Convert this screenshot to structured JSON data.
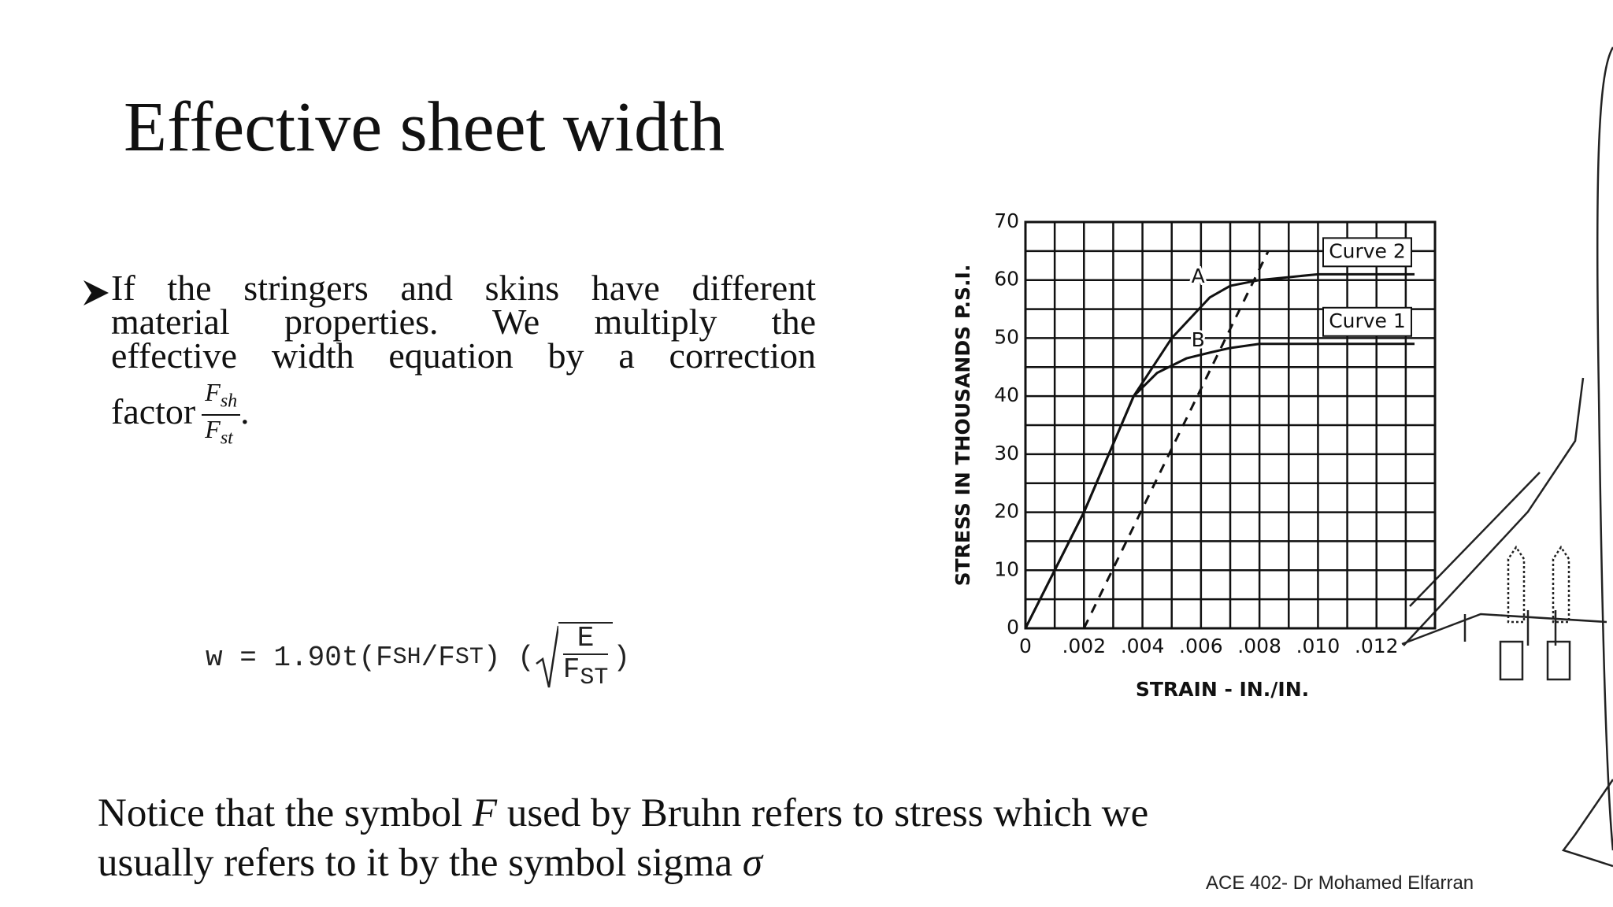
{
  "slide": {
    "title": "Effective sheet width",
    "bullet": {
      "lines": [
        "If the stringers and skins have different",
        "material properties. We multiply the",
        "effective width equation by a correction",
        "factor"
      ],
      "fraction": {
        "numerator": "F",
        "numerator_sub": "sh",
        "denominator": "F",
        "denominator_sub": "st"
      },
      "end": "."
    },
    "equation": {
      "prefix": "w = 1.90t(F",
      "sub1": "SH",
      "mid": "/F",
      "sub2": "ST",
      "open": ") (",
      "numerator": "E",
      "denominator": "F",
      "denominator_sub": "ST",
      "close": ")"
    },
    "notice": {
      "line1": [
        "Notice that the symbol ",
        "F",
        " used by Bruhn refers to stress which we"
      ],
      "line2": [
        "usually refers to it by the symbol sigma ",
        "σ"
      ]
    },
    "footer": "ACE 402- Dr Mohamed Elfarran"
  },
  "chart_data": {
    "type": "line",
    "x_label": "STRAIN - IN./IN.",
    "y_label": "STRESS IN THOUSANDS P.S.I.",
    "xlim": [
      0,
      0.014
    ],
    "ylim": [
      0,
      70
    ],
    "xticks": [
      0,
      {
        "value": 0.002,
        "label": ".002"
      },
      {
        "value": 0.004,
        "label": ".004"
      },
      {
        "value": 0.006,
        "label": ".006"
      },
      {
        "value": 0.008,
        "label": ".008"
      },
      {
        "value": 0.01,
        "label": ".010"
      },
      {
        "value": 0.012,
        "label": ".012"
      }
    ],
    "yticks": [
      0,
      10,
      20,
      30,
      40,
      50,
      60,
      70
    ],
    "x_minor_ticks": [
      0.001,
      0.003,
      0.005,
      0.007,
      0.009,
      0.011,
      0.013
    ],
    "y_minor_ticks": [
      5,
      15,
      25,
      35,
      45,
      55,
      65
    ],
    "grid": true,
    "series": [
      {
        "name": "Curve 2",
        "color": "#111111",
        "x": [
          0,
          0.002,
          0.0037,
          0.005,
          0.0063,
          0.007,
          0.008,
          0.01,
          0.0133
        ],
        "values": [
          0,
          20,
          40,
          50,
          57,
          59,
          60,
          61,
          61
        ]
      },
      {
        "name": "Curve 1",
        "color": "#111111",
        "x": [
          0,
          0.002,
          0.0037,
          0.0045,
          0.0055,
          0.0063,
          0.007,
          0.008,
          0.0133
        ],
        "values": [
          0,
          20,
          40,
          44,
          46.5,
          47.5,
          48.3,
          49,
          49
        ]
      },
      {
        "color": "#111111",
        "dashed": true,
        "x": [
          0.002,
          0.0083
        ],
        "values": [
          0,
          65
        ]
      }
    ],
    "annotations": [
      {
        "text": "A",
        "x": 0.0059,
        "y": 60.5
      },
      {
        "text": "B",
        "x": 0.0059,
        "y": 49.5
      }
    ]
  }
}
